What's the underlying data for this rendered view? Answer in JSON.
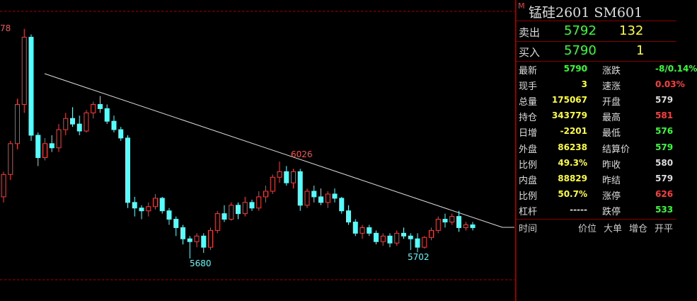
{
  "chart_data": {
    "type": "candlestick",
    "annotations": {
      "top_left": "78",
      "peak": "6026",
      "low_1": "5680",
      "low_2": "5702"
    },
    "ylim": [
      5528,
      6603
    ],
    "up_color": "#ff3c3c",
    "down_color": "#54ffff",
    "ohlc": [
      [
        5900,
        5990,
        5880,
        5980
      ],
      [
        5980,
        6100,
        5960,
        6090
      ],
      [
        6090,
        6250,
        6070,
        6230
      ],
      [
        6230,
        6500,
        6200,
        6470
      ],
      [
        6470,
        6480,
        6100,
        6120
      ],
      [
        6120,
        6130,
        6010,
        6040
      ],
      [
        6040,
        6110,
        6030,
        6090
      ],
      [
        6090,
        6120,
        6060,
        6075
      ],
      [
        6075,
        6160,
        6060,
        6140
      ],
      [
        6140,
        6200,
        6120,
        6180
      ],
      [
        6180,
        6220,
        6150,
        6160
      ],
      [
        6160,
        6190,
        6120,
        6135
      ],
      [
        6135,
        6210,
        6130,
        6200
      ],
      [
        6200,
        6240,
        6180,
        6230
      ],
      [
        6230,
        6260,
        6200,
        6215
      ],
      [
        6215,
        6230,
        6160,
        6170
      ],
      [
        6170,
        6190,
        6130,
        6140
      ],
      [
        6140,
        6150,
        6100,
        6110
      ],
      [
        6110,
        6120,
        5860,
        5880
      ],
      [
        5880,
        5900,
        5830,
        5860
      ],
      [
        5860,
        5870,
        5820,
        5850
      ],
      [
        5850,
        5880,
        5830,
        5865
      ],
      [
        5865,
        5910,
        5855,
        5895
      ],
      [
        5895,
        5900,
        5840,
        5850
      ],
      [
        5850,
        5860,
        5800,
        5820
      ],
      [
        5820,
        5830,
        5760,
        5790
      ],
      [
        5790,
        5800,
        5730,
        5750
      ],
      [
        5750,
        5760,
        5680,
        5740
      ],
      [
        5740,
        5770,
        5720,
        5760
      ],
      [
        5760,
        5770,
        5700,
        5720
      ],
      [
        5720,
        5790,
        5710,
        5780
      ],
      [
        5780,
        5850,
        5770,
        5840
      ],
      [
        5840,
        5870,
        5810,
        5820
      ],
      [
        5820,
        5880,
        5815,
        5870
      ],
      [
        5870,
        5880,
        5820,
        5840
      ],
      [
        5840,
        5900,
        5830,
        5880
      ],
      [
        5880,
        5890,
        5850,
        5860
      ],
      [
        5860,
        5920,
        5850,
        5900
      ],
      [
        5900,
        5940,
        5880,
        5920
      ],
      [
        5920,
        5980,
        5910,
        5970
      ],
      [
        5970,
        6026,
        5950,
        5990
      ],
      [
        5990,
        6010,
        5940,
        5950
      ],
      [
        5950,
        6000,
        5930,
        5990
      ],
      [
        5990,
        6000,
        5850,
        5870
      ],
      [
        5870,
        5930,
        5860,
        5920
      ],
      [
        5920,
        5940,
        5880,
        5900
      ],
      [
        5900,
        5930,
        5870,
        5880
      ],
      [
        5880,
        5920,
        5860,
        5910
      ],
      [
        5910,
        5930,
        5880,
        5895
      ],
      [
        5895,
        5900,
        5840,
        5850
      ],
      [
        5850,
        5870,
        5800,
        5810
      ],
      [
        5810,
        5820,
        5760,
        5770
      ],
      [
        5770,
        5800,
        5750,
        5790
      ],
      [
        5790,
        5800,
        5760,
        5770
      ],
      [
        5770,
        5780,
        5730,
        5740
      ],
      [
        5740,
        5770,
        5725,
        5760
      ],
      [
        5760,
        5770,
        5720,
        5735
      ],
      [
        5735,
        5780,
        5725,
        5770
      ],
      [
        5770,
        5790,
        5750,
        5760
      ],
      [
        5760,
        5770,
        5710,
        5750
      ],
      [
        5750,
        5770,
        5702,
        5720
      ],
      [
        5720,
        5760,
        5715,
        5755
      ],
      [
        5755,
        5790,
        5745,
        5780
      ],
      [
        5780,
        5830,
        5770,
        5820
      ],
      [
        5820,
        5840,
        5790,
        5810
      ],
      [
        5810,
        5840,
        5800,
        5830
      ],
      [
        5830,
        5850,
        5775,
        5790
      ],
      [
        5790,
        5810,
        5780,
        5800
      ],
      [
        5800,
        5810,
        5780,
        5790
      ]
    ]
  },
  "panel": {
    "flag": "M",
    "title": "锰硅2601  SM601",
    "sell": {
      "label": "卖出",
      "price": "5792",
      "volume": "132"
    },
    "buy": {
      "label": "买入",
      "price": "5790",
      "volume": "1"
    },
    "rows": [
      [
        "最新",
        "5790",
        "涨跌",
        "-8/0.14%"
      ],
      [
        "现手",
        "3",
        "速涨",
        "0.03%"
      ],
      [
        "总量",
        "175067",
        "开盘",
        "579"
      ],
      [
        "持仓",
        "343779",
        "最高",
        "581"
      ],
      [
        "日增",
        "-2201",
        "最低",
        "576"
      ],
      [
        "外盘",
        "86238",
        "结算价",
        "579"
      ],
      [
        "比例",
        "49.3%",
        "昨收",
        "580"
      ],
      [
        "内盘",
        "88829",
        "昨结",
        "579"
      ],
      [
        "比例",
        "50.7%",
        "涨停",
        "626"
      ],
      [
        "杠杆",
        "-----",
        "跌停",
        "533"
      ]
    ],
    "columns": [
      "时间",
      "价位",
      "大单",
      "增仓",
      "开平"
    ]
  }
}
